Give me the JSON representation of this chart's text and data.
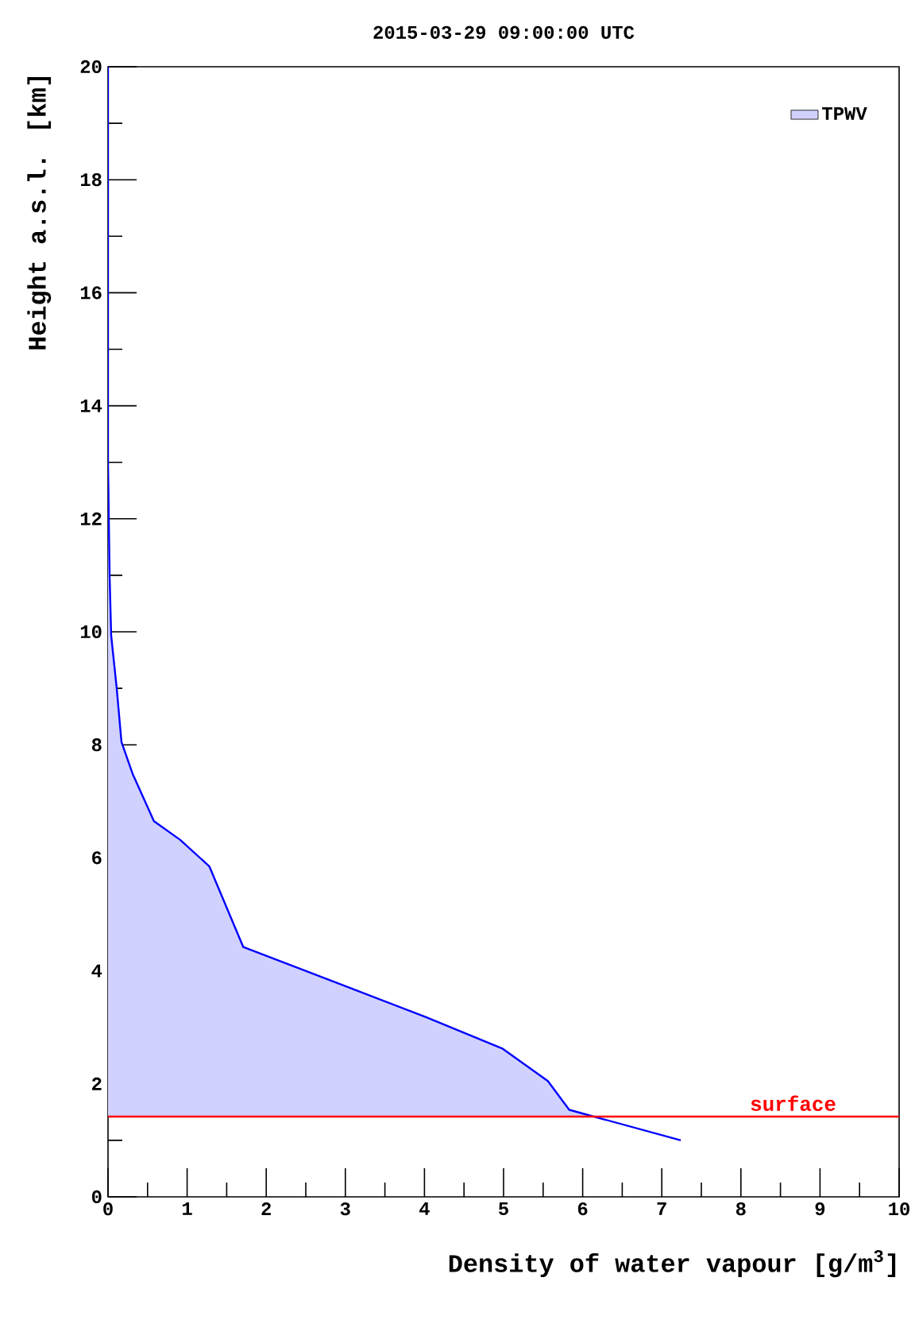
{
  "chart_data": {
    "type": "area",
    "title": "2015-03-29 09:00:00 UTC",
    "xlabel": "Density of water vapour [g/m$^{3}$]",
    "ylabel": "Height a.s.l. [km]",
    "xlim": [
      0,
      10
    ],
    "xticks": [
      0,
      1,
      2,
      3,
      4,
      5,
      6,
      7,
      8,
      9,
      10
    ],
    "ylim": [
      0,
      20
    ],
    "yticks": [
      0,
      2,
      4,
      6,
      8,
      10,
      12,
      14,
      16,
      18,
      20
    ],
    "grid": false,
    "legend": "top right",
    "series": [
      {
        "name": "TPWV",
        "color": "#0000ff",
        "x": [
          7.24,
          5.83,
          5.56,
          4.99,
          4.02,
          2.89,
          1.71,
          1.28,
          0.91,
          0.58,
          0.31,
          0.17,
          0.11,
          0.04,
          0.02,
          0.01,
          0,
          0
        ],
        "values": [
          1.0,
          1.54,
          2.05,
          2.62,
          3.18,
          3.79,
          4.42,
          5.85,
          6.32,
          6.65,
          7.49,
          8.05,
          9.0,
          9.93,
          11,
          12,
          13,
          20
        ]
      }
    ],
    "ref_lines": [
      {
        "axis": "y",
        "value": 1.42,
        "label": "surface",
        "color": "#ff0000"
      }
    ]
  }
}
